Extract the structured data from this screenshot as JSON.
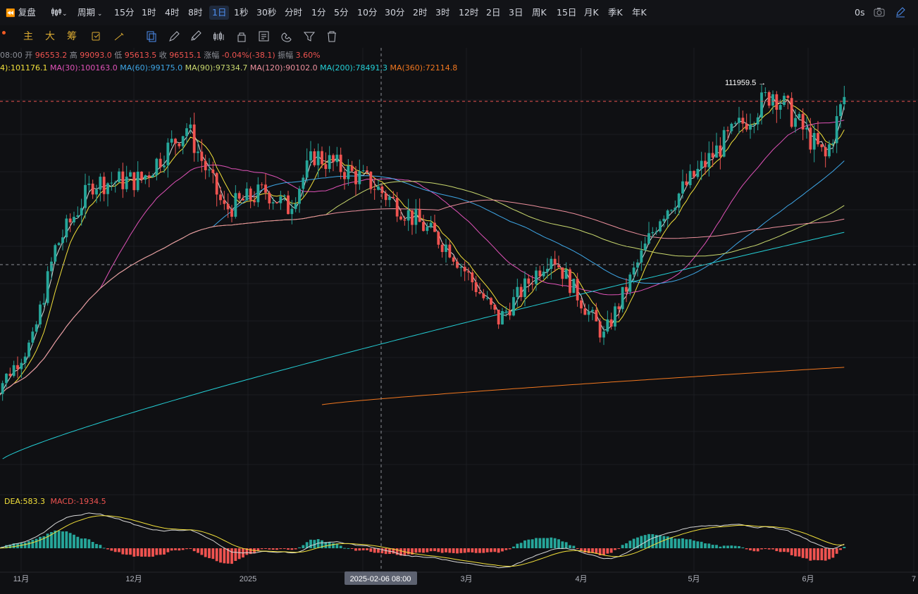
{
  "toolbar": {
    "replay": "复盘",
    "chart_type_icon": "candlestick-icon",
    "period_menu": "周期",
    "intervals": [
      "15分",
      "1时",
      "4时",
      "8时",
      "1日",
      "1秒",
      "30秒",
      "分时",
      "1分",
      "5分",
      "10分",
      "30分",
      "2时",
      "3时",
      "12时",
      "2日",
      "3日",
      "周K",
      "15日",
      "月K",
      "季K",
      "年K"
    ],
    "active_interval": "1日",
    "latency": "0s",
    "camera_icon": "camera-icon",
    "pen_icon": "pencil-icon"
  },
  "drawbar": {
    "labels": [
      "主",
      "大",
      "筹"
    ],
    "tools": [
      "copy-icon",
      "brush-icon",
      "ruler-icon",
      "line-icon",
      "bars-icon",
      "lock-icon",
      "note-icon",
      "magnet-icon",
      "filter-icon",
      "trash-icon"
    ]
  },
  "ohlc": {
    "time": "08:00",
    "open_label": "开",
    "open": "96553.2",
    "high_label": "高",
    "high": "99093.0",
    "low_label": "低",
    "low": "95613.5",
    "close_label": "收",
    "close": "96515.1",
    "change_label": "涨幅",
    "change": "-0.04%(-38.1)",
    "amplitude_label": "振幅",
    "amplitude": "3.60%"
  },
  "ma_legend": [
    {
      "label": "4):101176.1",
      "color": "#f2e03a"
    },
    {
      "label": "MA(30):100163.0",
      "color": "#e052b8"
    },
    {
      "label": "MA(60):99175.0",
      "color": "#3ea6e6"
    },
    {
      "label": "MA(90):97334.7",
      "color": "#c9d86e"
    },
    {
      "label": "MA(120):90102.0",
      "color": "#ec8f9c"
    },
    {
      "label": "MA(200):78491.3",
      "color": "#24cfd6"
    },
    {
      "label": "MA(360):72114.8",
      "color": "#f1771f"
    }
  ],
  "macd_legend": {
    "dea": "DEA:583.3",
    "macd": "MACD:-1934.5"
  },
  "high_marker": "111959.5 →",
  "crosshair_date": "2025-02-06 08:00",
  "colors": {
    "up": "#26a69a",
    "down": "#ef5350",
    "bg": "#0f1013",
    "grid": "#1b1d22"
  },
  "chart_data": {
    "type": "line",
    "title": "",
    "xlabel": "",
    "ylabel": "",
    "x_ticks": [
      "11月",
      "12月",
      "2025",
      "3月",
      "4月",
      "5月",
      "6月",
      "7"
    ],
    "y_range_price": [
      58000,
      116000
    ],
    "grid": true,
    "legend_position": "top-left",
    "price_series_anchor_points": {
      "days": [
        "10-26",
        "11-06",
        "11-12",
        "11-22",
        "12-05",
        "12-17",
        "12-27",
        "01-07",
        "01-13",
        "01-20",
        "02-04",
        "02-25",
        "03-10",
        "03-24",
        "04-07",
        "04-22",
        "05-08",
        "05-22",
        "06-05",
        "06-10"
      ],
      "close": [
        67600,
        75600,
        88700,
        98000,
        98500,
        106000,
        94200,
        96900,
        94500,
        102000,
        98000,
        88700,
        78500,
        88000,
        76200,
        93400,
        103200,
        111000,
        101500,
        110200
      ]
    },
    "series": [
      {
        "name": "MA(30)",
        "color": "#e052b8",
        "end_value": 100163.0
      },
      {
        "name": "MA(60)",
        "color": "#3ea6e6",
        "end_value": 99175.0
      },
      {
        "name": "MA(90)",
        "color": "#c9d86e",
        "end_value": 97334.7
      },
      {
        "name": "MA(120)",
        "color": "#ec8f9c",
        "end_value": 90102.0
      },
      {
        "name": "MA(200)",
        "color": "#24cfd6",
        "end_value": 78491.3
      },
      {
        "name": "MA(360)",
        "color": "#f1771f",
        "end_value": 72114.8
      }
    ],
    "macd": {
      "dea": 583.3,
      "macd": -1934.5
    }
  }
}
